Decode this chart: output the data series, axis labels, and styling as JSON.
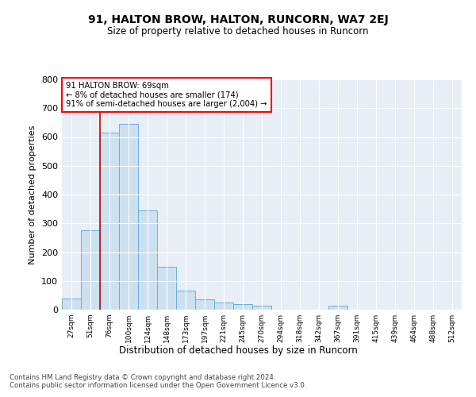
{
  "title": "91, HALTON BROW, HALTON, RUNCORN, WA7 2EJ",
  "subtitle": "Size of property relative to detached houses in Runcorn",
  "xlabel": "Distribution of detached houses by size in Runcorn",
  "ylabel": "Number of detached properties",
  "bar_color": "#cde0f0",
  "bar_edge_color": "#6aaed6",
  "bg_color": "#e8eef6",
  "annotation_text": "91 HALTON BROW: 69sqm\n← 8% of detached houses are smaller (174)\n91% of semi-detached houses are larger (2,004) →",
  "vline_x": 1.5,
  "categories": [
    "27sqm",
    "51sqm",
    "76sqm",
    "100sqm",
    "124sqm",
    "148sqm",
    "173sqm",
    "197sqm",
    "221sqm",
    "245sqm",
    "270sqm",
    "294sqm",
    "318sqm",
    "342sqm",
    "367sqm",
    "391sqm",
    "415sqm",
    "439sqm",
    "464sqm",
    "488sqm",
    "512sqm"
  ],
  "values": [
    40,
    275,
    615,
    645,
    345,
    150,
    65,
    35,
    25,
    20,
    15,
    0,
    0,
    0,
    15,
    0,
    0,
    0,
    0,
    0,
    0
  ],
  "ylim": [
    0,
    800
  ],
  "yticks": [
    0,
    100,
    200,
    300,
    400,
    500,
    600,
    700,
    800
  ],
  "footnote1": "Contains HM Land Registry data © Crown copyright and database right 2024.",
  "footnote2": "Contains public sector information licensed under the Open Government Licence v3.0."
}
